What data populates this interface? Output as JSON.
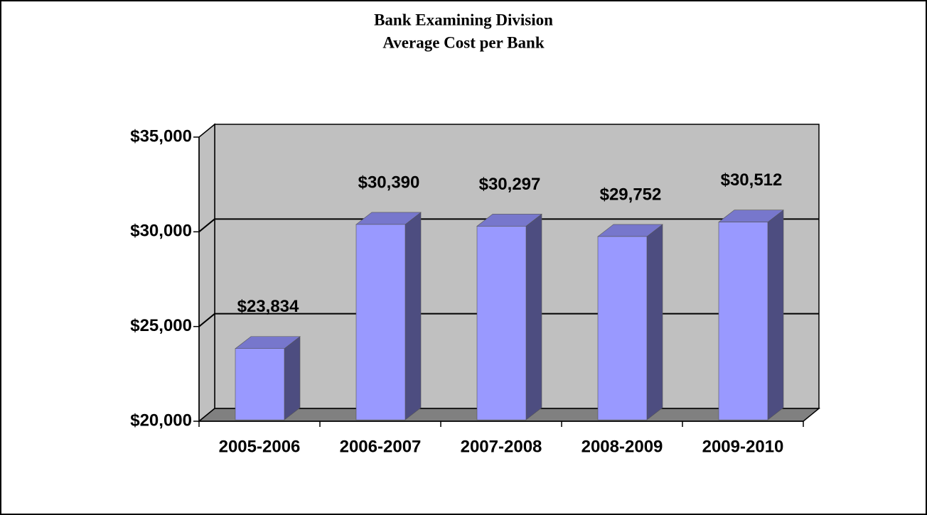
{
  "chart_data": {
    "type": "bar",
    "title": "Bank Examining Division",
    "subtitle": "Average Cost per Bank",
    "categories": [
      "2005-2006",
      "2006-2007",
      "2007-2008",
      "2008-2009",
      "2009-2010"
    ],
    "values": [
      23834,
      30390,
      30297,
      29752,
      30512
    ],
    "value_labels": [
      "$23,834",
      "$30,390",
      "$30,297",
      "$29,752",
      "$30,512"
    ],
    "color": "#9999ff",
    "ylim": [
      20000,
      35000
    ],
    "yticks": [
      {
        "value": 20000,
        "label": "$20,000"
      },
      {
        "value": 25000,
        "label": "$25,000"
      },
      {
        "value": 30000,
        "label": "$30,000"
      },
      {
        "value": 35000,
        "label": "$35,000"
      }
    ],
    "grid": true
  }
}
